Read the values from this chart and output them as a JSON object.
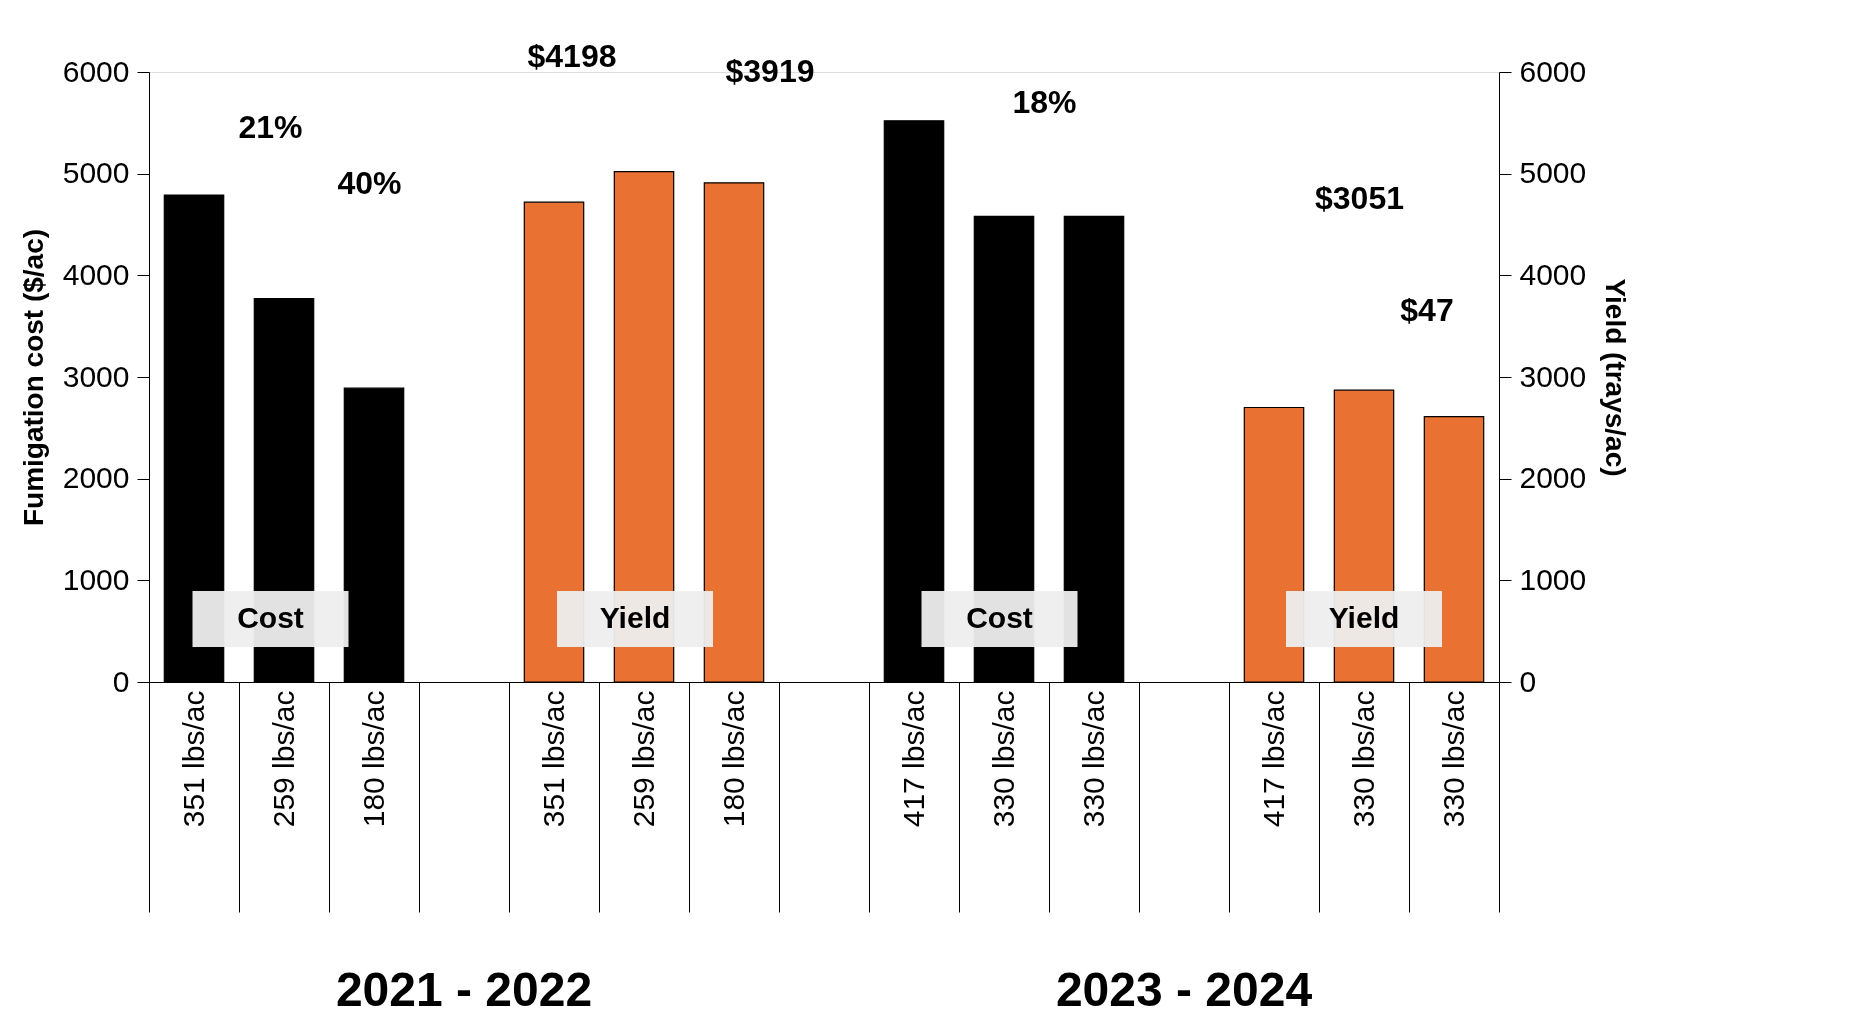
{
  "chart_data": {
    "type": "bar",
    "categories": [
      "351 lbs/ac",
      "259 lbs/ac",
      "180 lbs/ac",
      null,
      "351 lbs/ac",
      "259 lbs/ac",
      "180 lbs/ac",
      null,
      "417 lbs/ac",
      "330 lbs/ac",
      "330 lbs/ac",
      null,
      "417 lbs/ac",
      "330 lbs/ac",
      "330 lbs/ac"
    ],
    "ylabel": "Fumigation cost ($/ac)",
    "y2label": "Yield (trays/ac)",
    "series": [
      {
        "color": "#000000",
        "values": [
          4790,
          3770,
          2890,
          null,
          null,
          null,
          null,
          null,
          5520,
          4580,
          4580,
          null,
          null,
          null,
          null
        ]
      },
      {
        "color": "#e97132",
        "axis": "y2",
        "values": [
          null,
          null,
          null,
          null,
          4720,
          5020,
          4910,
          null,
          null,
          null,
          null,
          null,
          2700,
          2870,
          2610
        ]
      }
    ],
    "ylim": [
      0,
      6000
    ],
    "yticks": [
      0,
      1000,
      2000,
      3000,
      4000,
      5000,
      6000
    ],
    "y2lim": [
      0,
      6000
    ],
    "y2ticks": [
      0,
      1000,
      2000,
      3000,
      4000,
      5000,
      6000
    ],
    "grid": false,
    "annotations": [
      "21%",
      "40%",
      "$4198",
      "$3919",
      "18%",
      "$3051",
      "$47",
      "Cost",
      "Yield",
      "Cost",
      "Yield",
      "2021 - 2022",
      "2023 - 2024"
    ]
  }
}
